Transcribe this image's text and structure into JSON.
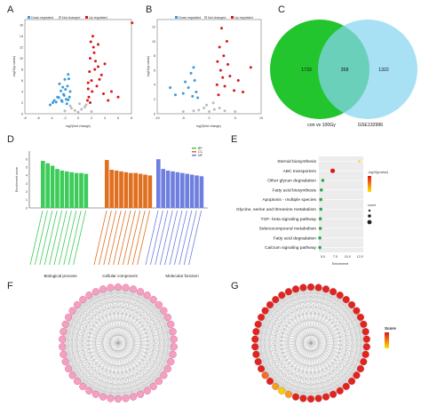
{
  "panel_labels": [
    "A",
    "B",
    "C",
    "D",
    "E",
    "F",
    "G"
  ],
  "legend_volcano": {
    "down": "Down regulated",
    "not": "Not changed",
    "up": "Up regulated"
  },
  "colors": {
    "down": "#3b9ad9",
    "not": "#bbbbbb",
    "up": "#d7191c",
    "bp": "#3dcc5a",
    "cc": "#e07020",
    "mf": "#6f7fe0",
    "venn_left": "#22c52e",
    "venn_right": "#86d4f0",
    "node_f": "#f79fc0",
    "node_g": "#e0261c"
  },
  "chart_data": [
    {
      "type": "scatter",
      "panel": "A",
      "xlabel": "log2(fold change)",
      "ylabel": "-log10(p-value)",
      "xticks": [
        "-8",
        "-6",
        "-4",
        "-2",
        "0",
        "2",
        "4",
        "6",
        "8"
      ],
      "yticks": [
        "0",
        "2",
        "4",
        "6",
        "8",
        "10",
        "12",
        "14",
        "16"
      ],
      "xlim": [
        -8,
        8
      ],
      "ylim": [
        0,
        17
      ],
      "series": [
        {
          "name": "Down regulated",
          "points": [
            [
              -2.2,
              3.5
            ],
            [
              -1.8,
              2.6
            ],
            [
              -2.6,
              4.1
            ],
            [
              -3.1,
              3.0
            ],
            [
              -1.6,
              5.0
            ],
            [
              -2.0,
              6.2
            ],
            [
              -1.5,
              7.1
            ],
            [
              -2.4,
              2.2
            ],
            [
              -3.6,
              2.4
            ],
            [
              -1.3,
              3.0
            ],
            [
              -4.2,
              1.6
            ],
            [
              -1.9,
              4.4
            ],
            [
              -2.8,
              5.4
            ],
            [
              -1.7,
              1.8
            ],
            [
              -3.3,
              2.1
            ],
            [
              -1.4,
              6.3
            ],
            [
              -2.1,
              3.3
            ],
            [
              -2.9,
              2.9
            ],
            [
              -1.5,
              2.5
            ],
            [
              -2.3,
              4.8
            ],
            [
              -1.2,
              4.0
            ],
            [
              -3.8,
              2.0
            ],
            [
              -2.5,
              2.4
            ]
          ]
        },
        {
          "name": "Not changed",
          "points": [
            [
              -1,
              1.0
            ],
            [
              0,
              0.3
            ],
            [
              1,
              1.2
            ],
            [
              -0.5,
              0.6
            ],
            [
              0.5,
              0.8
            ],
            [
              1.2,
              1.6
            ],
            [
              -1.2,
              1.4
            ],
            [
              0.2,
              1.8
            ],
            [
              2.0,
              0.4
            ],
            [
              -2.0,
              0.5
            ]
          ]
        },
        {
          "name": "Up regulated",
          "points": [
            [
              1.5,
              4.5
            ],
            [
              2.0,
              6.0
            ],
            [
              2.5,
              8.0
            ],
            [
              1.8,
              10.0
            ],
            [
              3.0,
              12.5
            ],
            [
              2.2,
              14.0
            ],
            [
              1.6,
              3.0
            ],
            [
              2.8,
              5.0
            ],
            [
              3.5,
              7.0
            ],
            [
              4.0,
              9.0
            ],
            [
              1.4,
              2.4
            ],
            [
              2.4,
              11.0
            ],
            [
              3.2,
              6.2
            ],
            [
              5.0,
              4.0
            ],
            [
              1.9,
              13.0
            ],
            [
              2.6,
              9.5
            ],
            [
              3.8,
              3.6
            ],
            [
              1.7,
              7.6
            ],
            [
              4.5,
              2.4
            ],
            [
              2.1,
              4.0
            ],
            [
              3.0,
              8.5
            ],
            [
              1.5,
              5.6
            ],
            [
              6.0,
              3.0
            ],
            [
              2.3,
              12.0
            ],
            [
              1.8,
              2.0
            ],
            [
              8.1,
              16.4
            ]
          ]
        }
      ]
    },
    {
      "type": "scatter",
      "panel": "B",
      "xlabel": "log2(fold change)",
      "ylabel": "-log10(p-value)",
      "xticks": [
        "-10",
        "-5",
        "0",
        "5",
        "10"
      ],
      "yticks": [
        "0",
        "2",
        "4",
        "6",
        "8",
        "10",
        "12"
      ],
      "xlim": [
        -10,
        10
      ],
      "ylim": [
        0,
        13
      ],
      "series": [
        {
          "name": "Down regulated",
          "points": [
            [
              -2.5,
              3.0
            ],
            [
              -3.2,
              2.4
            ],
            [
              -4.0,
              3.6
            ],
            [
              -2.8,
              4.6
            ],
            [
              -5.0,
              2.8
            ],
            [
              -3.5,
              5.6
            ],
            [
              -6.5,
              2.6
            ],
            [
              -2.2,
              2.2
            ],
            [
              -4.6,
              4.4
            ],
            [
              -7.5,
              3.6
            ],
            [
              -3.0,
              6.4
            ]
          ]
        },
        {
          "name": "Not changed",
          "points": [
            [
              -1,
              0.8
            ],
            [
              0,
              0.3
            ],
            [
              1,
              0.6
            ],
            [
              -2,
              0.5
            ],
            [
              2,
              0.8
            ],
            [
              -0.5,
              1.2
            ],
            [
              0.8,
              1.5
            ],
            [
              3,
              0.4
            ],
            [
              -3,
              0.4
            ],
            [
              5,
              0.3
            ],
            [
              -5,
              0.3
            ]
          ]
        },
        {
          "name": "Up regulated",
          "points": [
            [
              1.5,
              4.0
            ],
            [
              2.2,
              6.0
            ],
            [
              2.8,
              8.0
            ],
            [
              3.4,
              10.0
            ],
            [
              2.4,
              11.8
            ],
            [
              4.0,
              5.2
            ],
            [
              4.8,
              3.2
            ],
            [
              1.8,
              2.6
            ],
            [
              3.0,
              3.8
            ],
            [
              5.6,
              4.6
            ],
            [
              6.5,
              3.0
            ],
            [
              2.0,
              9.2
            ],
            [
              3.6,
              6.8
            ],
            [
              1.6,
              7.2
            ],
            [
              2.6,
              5.0
            ],
            [
              8.0,
              6.4
            ]
          ]
        }
      ]
    },
    {
      "type": "venn",
      "panel": "C",
      "sets": [
        {
          "name": "con vs 100Gy",
          "only": "1733"
        },
        {
          "name": "GSE132996",
          "only": "1322"
        }
      ],
      "overlap": "358"
    },
    {
      "type": "bar",
      "panel": "D",
      "ylabel": "Enrichment score",
      "yticks": [
        "0",
        "1",
        "2",
        "3",
        "4",
        "5",
        "6"
      ],
      "ylim": [
        0,
        7
      ],
      "legend": [
        "BP",
        "CC",
        "MF"
      ],
      "groups": [
        {
          "name": "Biological process",
          "values": [
            5.8,
            5.5,
            5.2,
            4.8,
            4.6,
            4.5,
            4.4,
            4.3,
            4.3,
            4.2
          ]
        },
        {
          "name": "Cellular component",
          "values": [
            5.9,
            4.7,
            4.6,
            4.5,
            4.4,
            4.3,
            4.3,
            4.2,
            4.1,
            4.0
          ]
        },
        {
          "name": "Molecular function",
          "values": [
            6.0,
            4.8,
            4.6,
            4.5,
            4.4,
            4.3,
            4.2,
            4.1,
            4.0,
            3.9
          ]
        }
      ]
    },
    {
      "type": "scatter",
      "panel": "E",
      "xlabel": "Enrichment",
      "xticks": [
        "5.0",
        "7.5",
        "10.0",
        "12.5"
      ],
      "xlim": [
        4.2,
        13.2
      ],
      "categories": [
        "Steroid biosynthesis",
        "ABC transporters",
        "Other glycan degradation",
        "Fatty acid biosynthesis",
        "Apoptosis - multiple species",
        "Glycine, serine and threonine metabolism",
        "TGF- beta signaling pathway",
        "Selenocompound metabolism",
        "Fatty acid degradation",
        "Calcium signaling pathway"
      ],
      "values": [
        12.4,
        7.0,
        5.0,
        4.7,
        4.6,
        4.6,
        4.5,
        4.5,
        4.4,
        4.4
      ],
      "colorbar_title": "-log10(pvalue)",
      "size_legend_title": "count"
    },
    {
      "type": "network",
      "panel": "F"
    },
    {
      "type": "network",
      "panel": "G",
      "legend_title": "Score"
    }
  ]
}
